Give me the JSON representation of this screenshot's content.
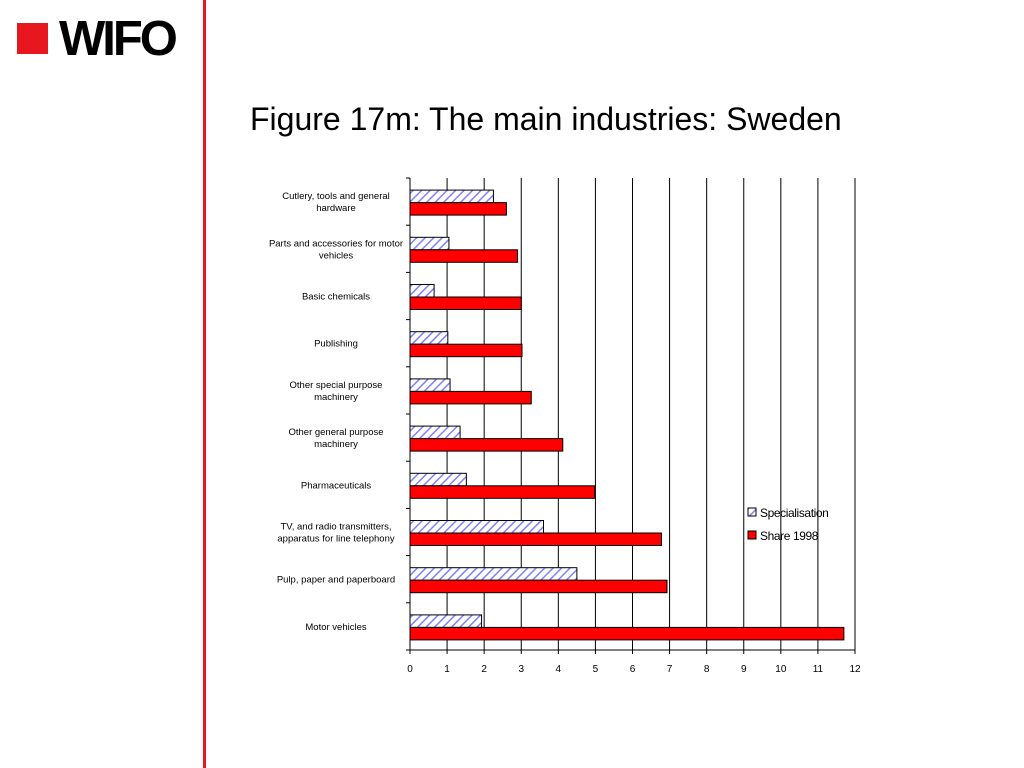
{
  "logo": {
    "text": "WIFO"
  },
  "title": "Figure 17m: The main industries: Sweden",
  "chart_data": {
    "type": "bar",
    "orientation": "horizontal",
    "categories": [
      "Cutlery, tools and general hardware",
      "Parts and accessories for motor vehicles",
      "Basic chemicals",
      "Publishing",
      "Other special purpose machinery",
      "Other general purpose machinery",
      "Pharmaceuticals",
      "TV, and radio transmitters, apparatus for line telephony",
      "Pulp, paper and paperboard",
      "Motor vehicles"
    ],
    "category_label_lines": [
      [
        "Cutlery, tools and general",
        "hardware"
      ],
      [
        "Parts and accessories for motor",
        "vehicles"
      ],
      [
        "Basic chemicals"
      ],
      [
        "Publishing"
      ],
      [
        "Other special purpose",
        "machinery"
      ],
      [
        "Other general purpose",
        "machinery"
      ],
      [
        "Pharmaceuticals"
      ],
      [
        "TV, and radio transmitters,",
        "apparatus for line telephony"
      ],
      [
        "Pulp, paper and paperboard"
      ],
      [
        "Motor vehicles"
      ]
    ],
    "series": [
      {
        "name": "Specialisation",
        "values": [
          2.25,
          1.05,
          0.65,
          1.02,
          1.08,
          1.35,
          1.52,
          3.6,
          4.5,
          1.93
        ],
        "color": "#9999ff",
        "pattern": "hatched"
      },
      {
        "name": "Share 1998",
        "values": [
          2.6,
          2.9,
          3.0,
          3.02,
          3.27,
          4.12,
          4.98,
          6.78,
          6.93,
          11.7
        ],
        "color": "#ff0000",
        "pattern": "solid"
      }
    ],
    "xlim": [
      0,
      12
    ],
    "xticks": [
      "0",
      "1",
      "2",
      "3",
      "4",
      "5",
      "6",
      "7",
      "8",
      "9",
      "10",
      "11",
      "12"
    ],
    "grid": "vertical",
    "legend_position": "right"
  }
}
